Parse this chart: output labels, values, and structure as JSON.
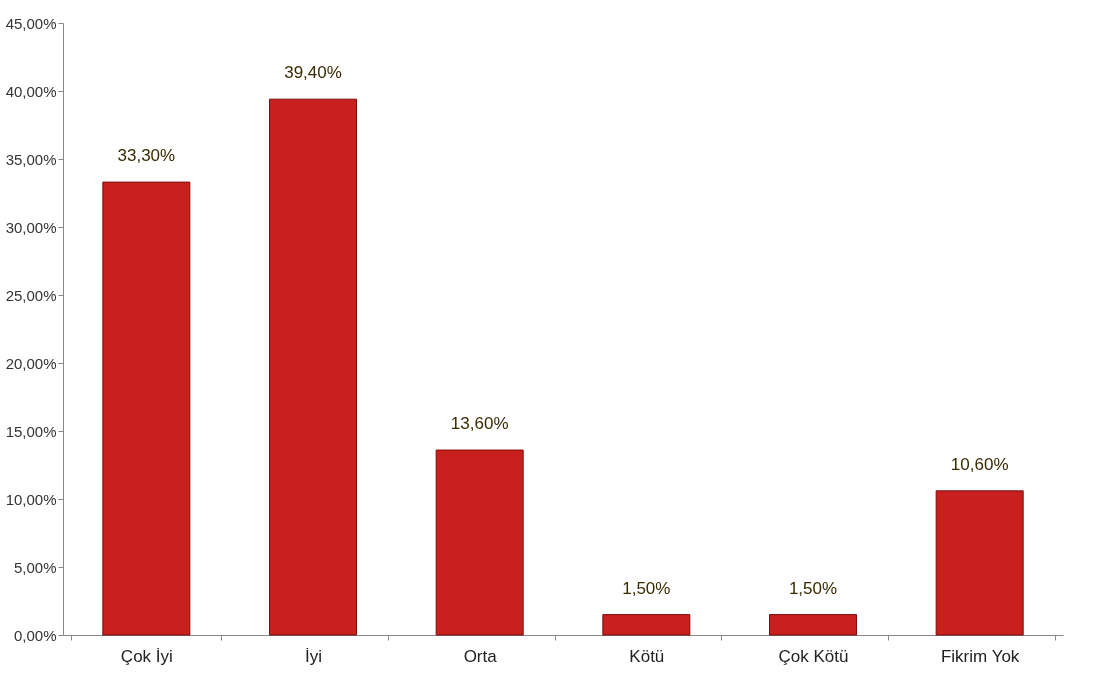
{
  "chart_data": {
    "type": "bar",
    "categories": [
      "Çok İyi",
      "İyi",
      "Orta",
      "Kötü",
      "Çok Kötü",
      "Fikrim Yok"
    ],
    "values": [
      33.3,
      39.4,
      13.6,
      1.5,
      1.5,
      10.6
    ],
    "value_labels": [
      "33,30%",
      "39,40%",
      "13,60%",
      "1,50%",
      "1,50%",
      "10,60%"
    ],
    "color": "#c8201c",
    "ylim": [
      0,
      45
    ],
    "yticks": [
      {
        "value": 0,
        "label": "0,00%"
      },
      {
        "value": 5,
        "label": "5,00%"
      },
      {
        "value": 10,
        "label": "10,00%"
      },
      {
        "value": 15,
        "label": "15,00%"
      },
      {
        "value": 20,
        "label": "20,00%"
      },
      {
        "value": 25,
        "label": "25,00%"
      },
      {
        "value": 30,
        "label": "30,00%"
      },
      {
        "value": 35,
        "label": "35,00%"
      },
      {
        "value": 40,
        "label": "40,00%"
      },
      {
        "value": 45,
        "label": "45,00%"
      }
    ],
    "grid": false
  }
}
